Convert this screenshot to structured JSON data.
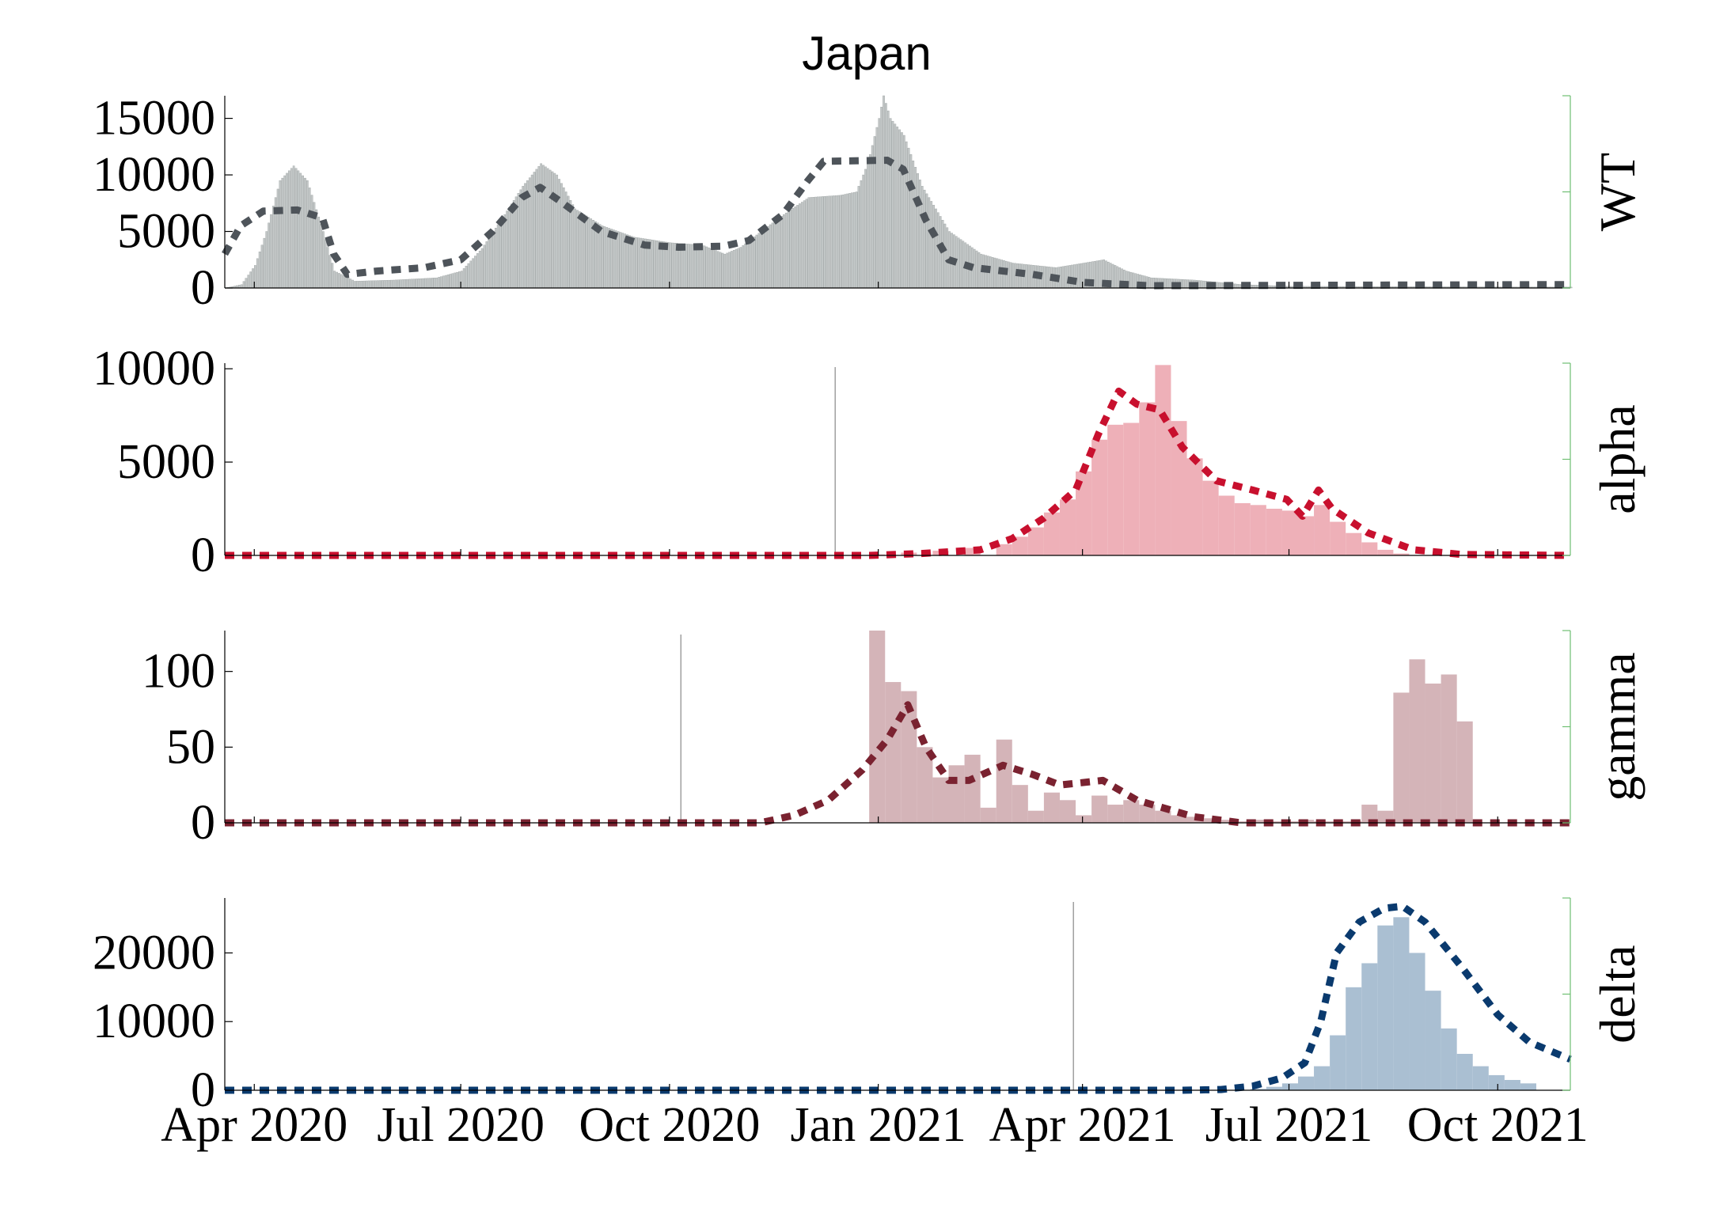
{
  "figure": {
    "title": "Japan"
  },
  "chart_data": [
    {
      "type": "bar",
      "variant_label": "WT",
      "x_axis": "date",
      "xlim": [
        "2020-03-19",
        "2021-11-02"
      ],
      "ylim": [
        0,
        17000
      ],
      "yticks": [
        0,
        5000,
        10000,
        15000
      ],
      "ytick_labels": [
        "0",
        "5000",
        "10000",
        "15000"
      ],
      "bar_width_days": 1,
      "bar_color": "#c4c8c8",
      "line_color": "#4e545a",
      "bars_keyframes": [
        [
          "2020-03-19",
          0
        ],
        [
          "2020-03-26",
          300
        ],
        [
          "2020-04-01",
          2000
        ],
        [
          "2020-04-06",
          5000
        ],
        [
          "2020-04-12",
          9500
        ],
        [
          "2020-04-18",
          10800
        ],
        [
          "2020-04-24",
          9500
        ],
        [
          "2020-05-01",
          5000
        ],
        [
          "2020-05-06",
          1500
        ],
        [
          "2020-05-15",
          600
        ],
        [
          "2020-06-01",
          700
        ],
        [
          "2020-06-20",
          900
        ],
        [
          "2020-07-01",
          1500
        ],
        [
          "2020-07-10",
          3500
        ],
        [
          "2020-07-20",
          6500
        ],
        [
          "2020-07-28",
          9000
        ],
        [
          "2020-08-05",
          11000
        ],
        [
          "2020-08-12",
          10000
        ],
        [
          "2020-08-20",
          7000
        ],
        [
          "2020-09-01",
          5500
        ],
        [
          "2020-09-15",
          4500
        ],
        [
          "2020-10-01",
          4000
        ],
        [
          "2020-10-15",
          3800
        ],
        [
          "2020-10-25",
          3000
        ],
        [
          "2020-11-01",
          3600
        ],
        [
          "2020-11-10",
          5000
        ],
        [
          "2020-11-20",
          6500
        ],
        [
          "2020-12-01",
          8000
        ],
        [
          "2020-12-15",
          8200
        ],
        [
          "2020-12-22",
          8500
        ],
        [
          "2020-12-27",
          11000
        ],
        [
          "2021-01-01",
          15000
        ],
        [
          "2021-01-03",
          17000
        ],
        [
          "2021-01-06",
          15000
        ],
        [
          "2021-01-12",
          13500
        ],
        [
          "2021-01-20",
          9000
        ],
        [
          "2021-02-01",
          5000
        ],
        [
          "2021-02-15",
          3000
        ],
        [
          "2021-03-01",
          2200
        ],
        [
          "2021-03-20",
          1800
        ],
        [
          "2021-04-01",
          2200
        ],
        [
          "2021-04-10",
          2500
        ],
        [
          "2021-04-20",
          1500
        ],
        [
          "2021-05-01",
          900
        ],
        [
          "2021-05-20",
          700
        ],
        [
          "2021-06-10",
          300
        ],
        [
          "2021-07-01",
          150
        ],
        [
          "2021-11-02",
          80
        ]
      ],
      "fit_line": [
        [
          "2020-03-19",
          3000
        ],
        [
          "2020-03-26",
          5500
        ],
        [
          "2020-04-05",
          6800
        ],
        [
          "2020-04-20",
          6900
        ],
        [
          "2020-05-01",
          6200
        ],
        [
          "2020-05-06",
          3000
        ],
        [
          "2020-05-12",
          1200
        ],
        [
          "2020-05-25",
          1500
        ],
        [
          "2020-06-15",
          1800
        ],
        [
          "2020-07-01",
          2500
        ],
        [
          "2020-07-15",
          5000
        ],
        [
          "2020-07-28",
          8000
        ],
        [
          "2020-08-05",
          8900
        ],
        [
          "2020-08-15",
          7500
        ],
        [
          "2020-09-01",
          5000
        ],
        [
          "2020-09-20",
          3800
        ],
        [
          "2020-10-05",
          3600
        ],
        [
          "2020-10-25",
          3700
        ],
        [
          "2020-11-05",
          4200
        ],
        [
          "2020-11-20",
          6500
        ],
        [
          "2020-12-01",
          9500
        ],
        [
          "2020-12-08",
          11200
        ],
        [
          "2021-01-05",
          11300
        ],
        [
          "2021-01-12",
          10500
        ],
        [
          "2021-01-22",
          6000
        ],
        [
          "2021-02-01",
          2500
        ],
        [
          "2021-02-12",
          1800
        ],
        [
          "2021-03-10",
          1200
        ],
        [
          "2021-04-01",
          500
        ],
        [
          "2021-05-01",
          200
        ],
        [
          "2021-11-02",
          300
        ]
      ]
    },
    {
      "type": "bar",
      "variant_label": "alpha",
      "x_axis": "date",
      "xlim": [
        "2020-03-19",
        "2021-11-02"
      ],
      "ylim": [
        0,
        10300
      ],
      "yticks": [
        0,
        5000,
        10000
      ],
      "ytick_labels": [
        "0",
        "5000",
        "10000"
      ],
      "bar_width_days": 7,
      "bar_color": "#eeb0b8",
      "line_color": "#c8102e",
      "bars_keyframes": [
        [
          "2020-12-28",
          50
        ],
        [
          "2021-01-11",
          150
        ],
        [
          "2021-01-25",
          250
        ],
        [
          "2021-02-08",
          400
        ],
        [
          "2021-02-22",
          600
        ],
        [
          "2021-03-01",
          1000
        ],
        [
          "2021-03-08",
          1500
        ],
        [
          "2021-03-15",
          2300
        ],
        [
          "2021-03-22",
          3000
        ],
        [
          "2021-03-29",
          4500
        ],
        [
          "2021-04-05",
          6200
        ],
        [
          "2021-04-12",
          7000
        ],
        [
          "2021-04-19",
          7100
        ],
        [
          "2021-04-26",
          8200
        ],
        [
          "2021-05-03",
          10200
        ],
        [
          "2021-05-10",
          7200
        ],
        [
          "2021-05-17",
          5200
        ],
        [
          "2021-05-24",
          4000
        ],
        [
          "2021-05-31",
          3200
        ],
        [
          "2021-06-07",
          2800
        ],
        [
          "2021-06-14",
          2700
        ],
        [
          "2021-06-21",
          2500
        ],
        [
          "2021-06-28",
          2400
        ],
        [
          "2021-07-05",
          2100
        ],
        [
          "2021-07-12",
          2700
        ],
        [
          "2021-07-19",
          1800
        ],
        [
          "2021-07-26",
          1200
        ],
        [
          "2021-08-02",
          700
        ],
        [
          "2021-08-09",
          300
        ],
        [
          "2021-08-16",
          100
        ]
      ],
      "fit_line": [
        [
          "2020-03-19",
          0
        ],
        [
          "2020-12-28",
          0
        ],
        [
          "2021-01-20",
          100
        ],
        [
          "2021-02-15",
          300
        ],
        [
          "2021-03-01",
          900
        ],
        [
          "2021-03-15",
          2000
        ],
        [
          "2021-03-29",
          3500
        ],
        [
          "2021-04-08",
          6500
        ],
        [
          "2021-04-17",
          8800
        ],
        [
          "2021-04-25",
          8100
        ],
        [
          "2021-05-05",
          7800
        ],
        [
          "2021-05-15",
          5800
        ],
        [
          "2021-05-30",
          4000
        ],
        [
          "2021-06-15",
          3500
        ],
        [
          "2021-06-30",
          3000
        ],
        [
          "2021-07-07",
          2100
        ],
        [
          "2021-07-14",
          3500
        ],
        [
          "2021-07-20",
          2500
        ],
        [
          "2021-08-05",
          1200
        ],
        [
          "2021-08-25",
          300
        ],
        [
          "2021-09-15",
          50
        ],
        [
          "2021-11-02",
          0
        ]
      ],
      "marker_date": "2020-12-13"
    },
    {
      "type": "bar",
      "variant_label": "gamma",
      "x_axis": "date",
      "xlim": [
        "2020-03-19",
        "2021-11-02"
      ],
      "ylim": [
        0,
        127
      ],
      "yticks": [
        0,
        50,
        100
      ],
      "ytick_labels": [
        "0",
        "50",
        "100"
      ],
      "bar_width_days": 7,
      "bar_color": "#d4b4b8",
      "line_color": "#7a2230",
      "bars_keyframes": [
        [
          "2020-12-28",
          127
        ],
        [
          "2021-01-04",
          93
        ],
        [
          "2021-01-11",
          87
        ],
        [
          "2021-01-18",
          50
        ],
        [
          "2021-01-25",
          30
        ],
        [
          "2021-02-01",
          38
        ],
        [
          "2021-02-08",
          45
        ],
        [
          "2021-02-15",
          10
        ],
        [
          "2021-02-22",
          55
        ],
        [
          "2021-03-01",
          25
        ],
        [
          "2021-03-08",
          8
        ],
        [
          "2021-03-15",
          20
        ],
        [
          "2021-03-22",
          15
        ],
        [
          "2021-03-29",
          5
        ],
        [
          "2021-04-05",
          18
        ],
        [
          "2021-04-12",
          12
        ],
        [
          "2021-04-19",
          15
        ],
        [
          "2021-04-26",
          12
        ],
        [
          "2021-05-03",
          8
        ],
        [
          "2021-05-10",
          5
        ],
        [
          "2021-05-17",
          4
        ],
        [
          "2021-05-24",
          3
        ],
        [
          "2021-05-31",
          2
        ],
        [
          "2021-06-07",
          1
        ],
        [
          "2021-06-14",
          2
        ],
        [
          "2021-06-21",
          1
        ],
        [
          "2021-06-28",
          1
        ],
        [
          "2021-07-05",
          2
        ],
        [
          "2021-07-12",
          1
        ],
        [
          "2021-07-19",
          1
        ],
        [
          "2021-07-26",
          1
        ],
        [
          "2021-08-02",
          12
        ],
        [
          "2021-08-09",
          8
        ],
        [
          "2021-08-16",
          86
        ],
        [
          "2021-08-23",
          108
        ],
        [
          "2021-08-30",
          92
        ],
        [
          "2021-09-06",
          98
        ],
        [
          "2021-09-13",
          67
        ]
      ],
      "fit_line": [
        [
          "2020-03-19",
          0
        ],
        [
          "2020-11-10",
          0
        ],
        [
          "2020-11-25",
          5
        ],
        [
          "2020-12-10",
          15
        ],
        [
          "2020-12-25",
          35
        ],
        [
          "2021-01-05",
          55
        ],
        [
          "2021-01-14",
          78
        ],
        [
          "2021-01-22",
          50
        ],
        [
          "2021-02-01",
          28
        ],
        [
          "2021-02-10",
          28
        ],
        [
          "2021-02-25",
          38
        ],
        [
          "2021-03-10",
          32
        ],
        [
          "2021-03-22",
          25
        ],
        [
          "2021-04-10",
          28
        ],
        [
          "2021-04-25",
          15
        ],
        [
          "2021-05-20",
          4
        ],
        [
          "2021-06-10",
          0
        ],
        [
          "2021-11-02",
          0
        ]
      ],
      "marker_date": "2020-10-06"
    },
    {
      "type": "bar",
      "variant_label": "delta",
      "x_axis": "date",
      "xlim": [
        "2020-03-19",
        "2021-11-02"
      ],
      "ylim": [
        0,
        28000
      ],
      "yticks": [
        0,
        10000,
        20000
      ],
      "ytick_labels": [
        "0",
        "10000",
        "20000"
      ],
      "xticks": [
        "2020-04-01",
        "2020-07-01",
        "2020-10-01",
        "2021-01-01",
        "2021-04-01",
        "2021-07-01",
        "2021-10-01"
      ],
      "xtick_labels": [
        "Apr 2020",
        "Jul 2020",
        "Oct 2020",
        "Jan 2021",
        "Apr 2021",
        "Jul 2021",
        "Oct 2021"
      ],
      "bar_width_days": 7,
      "bar_color": "#aabfd2",
      "line_color": "#0a3a6e",
      "bars_keyframes": [
        [
          "2021-06-14",
          200
        ],
        [
          "2021-06-21",
          500
        ],
        [
          "2021-06-28",
          1000
        ],
        [
          "2021-07-05",
          2000
        ],
        [
          "2021-07-12",
          3500
        ],
        [
          "2021-07-19",
          8000
        ],
        [
          "2021-07-26",
          15000
        ],
        [
          "2021-08-02",
          18500
        ],
        [
          "2021-08-09",
          24000
        ],
        [
          "2021-08-16",
          25200
        ],
        [
          "2021-08-23",
          20000
        ],
        [
          "2021-08-30",
          14500
        ],
        [
          "2021-09-06",
          9000
        ],
        [
          "2021-09-13",
          5300
        ],
        [
          "2021-09-20",
          3500
        ],
        [
          "2021-09-27",
          2200
        ],
        [
          "2021-10-04",
          1500
        ],
        [
          "2021-10-11",
          1000
        ]
      ],
      "fit_line": [
        [
          "2020-03-19",
          0
        ],
        [
          "2021-05-15",
          0
        ],
        [
          "2021-06-01",
          100
        ],
        [
          "2021-06-15",
          600
        ],
        [
          "2021-06-28",
          1800
        ],
        [
          "2021-07-08",
          4000
        ],
        [
          "2021-07-15",
          10000
        ],
        [
          "2021-07-22",
          20000
        ],
        [
          "2021-08-01",
          24500
        ],
        [
          "2021-08-12",
          26500
        ],
        [
          "2021-08-20",
          26800
        ],
        [
          "2021-08-30",
          24500
        ],
        [
          "2021-09-15",
          18000
        ],
        [
          "2021-10-01",
          11000
        ],
        [
          "2021-10-15",
          7000
        ],
        [
          "2021-11-02",
          4500
        ]
      ],
      "marker_date": "2021-03-28"
    }
  ]
}
